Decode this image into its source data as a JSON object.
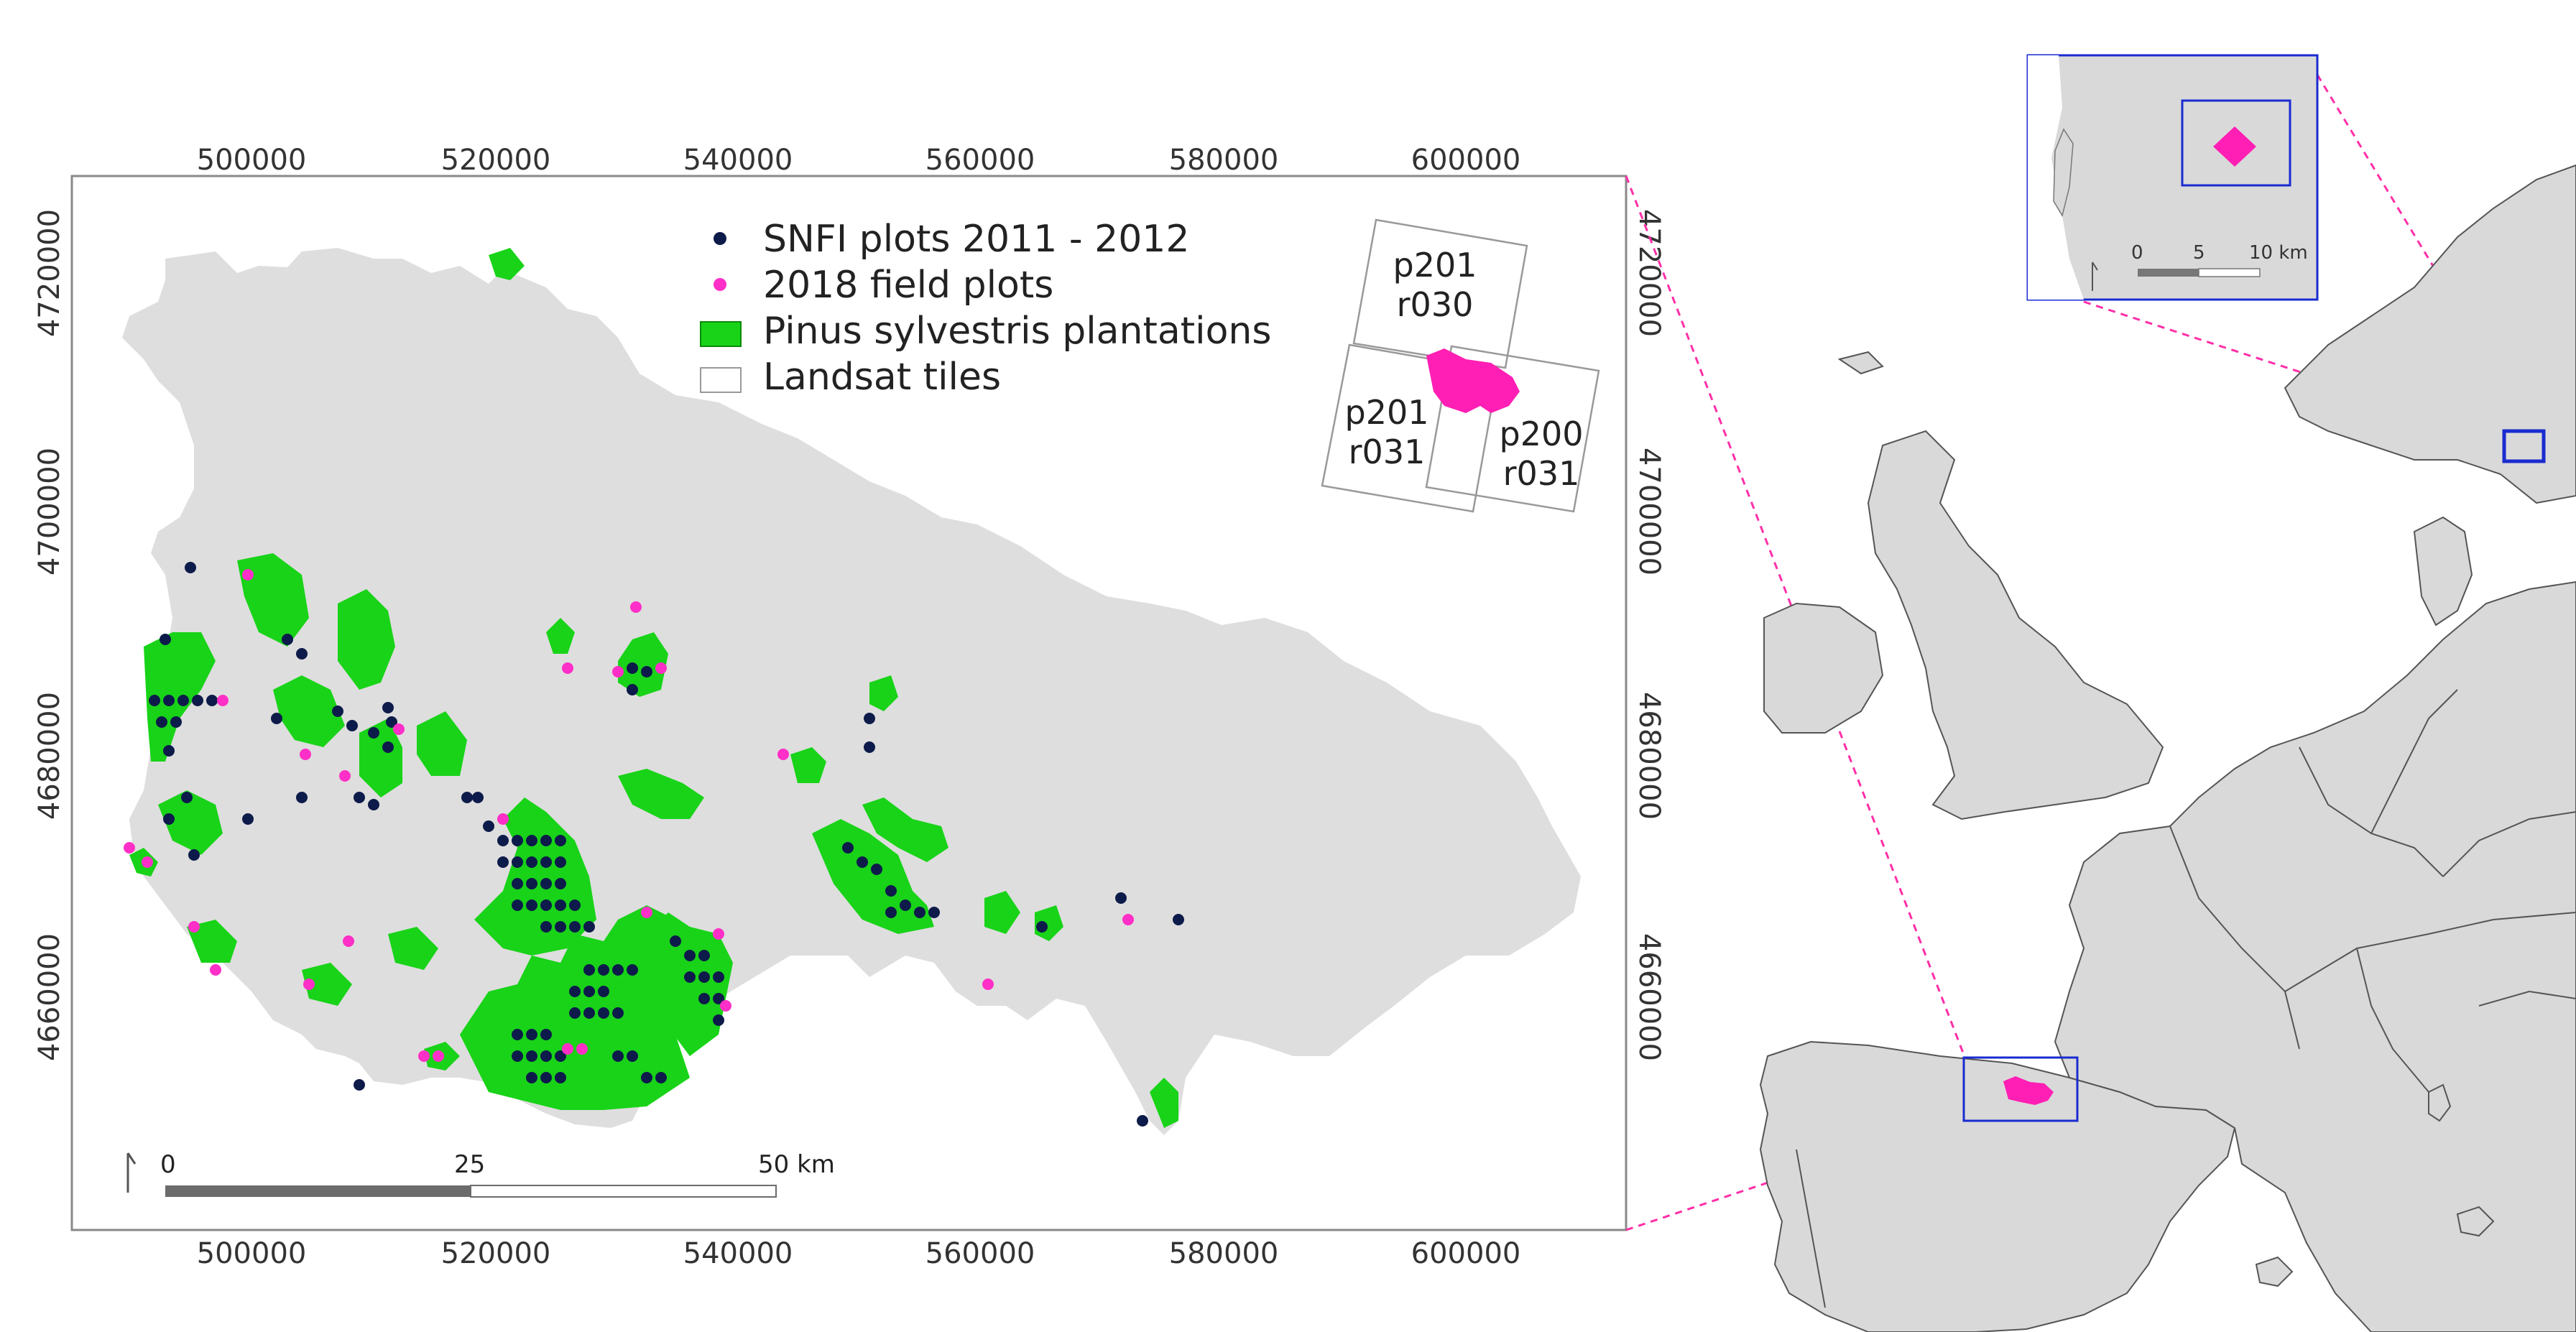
{
  "main_map": {
    "x_ticks": [
      "500000",
      "520000",
      "540000",
      "560000",
      "580000",
      "600000"
    ],
    "y_ticks": [
      "4720000",
      "4700000",
      "4680000",
      "4660000"
    ],
    "legend": [
      {
        "label": "SNFI plots 2011 - 2012",
        "symbol": "dot",
        "color": "#0d1b4a"
      },
      {
        "label": "2018 field plots",
        "symbol": "dot",
        "color": "#ff2fc7"
      },
      {
        "label": "Pinus sylvestris plantations",
        "symbol": "patch",
        "color": "#18d318"
      },
      {
        "label": "Landsat tiles",
        "symbol": "box",
        "color": "#ffffff"
      }
    ],
    "tiles": [
      {
        "line1": "p201",
        "line2": "r030"
      },
      {
        "line1": "p201",
        "line2": "r031"
      },
      {
        "line1": "p200",
        "line2": "r031"
      }
    ],
    "scale": {
      "labels": [
        "0",
        "25",
        "50 km"
      ]
    },
    "colors": {
      "region": "#dedede",
      "plantation": "#18d318",
      "snfi": "#0d1b4a",
      "field": "#ff2fc7",
      "highlight": "#ff1fb4"
    }
  },
  "inset": {
    "scale": {
      "labels": [
        "0",
        "5",
        "10 km"
      ]
    },
    "colors": {
      "frame": "#1a2bd0",
      "highlight": "#ff1fb4"
    }
  },
  "europe": {
    "colors": {
      "land": "#d9d9d9",
      "border": "#555555",
      "frame": "#1a2bd0",
      "connector": "#ff2fa8"
    }
  }
}
